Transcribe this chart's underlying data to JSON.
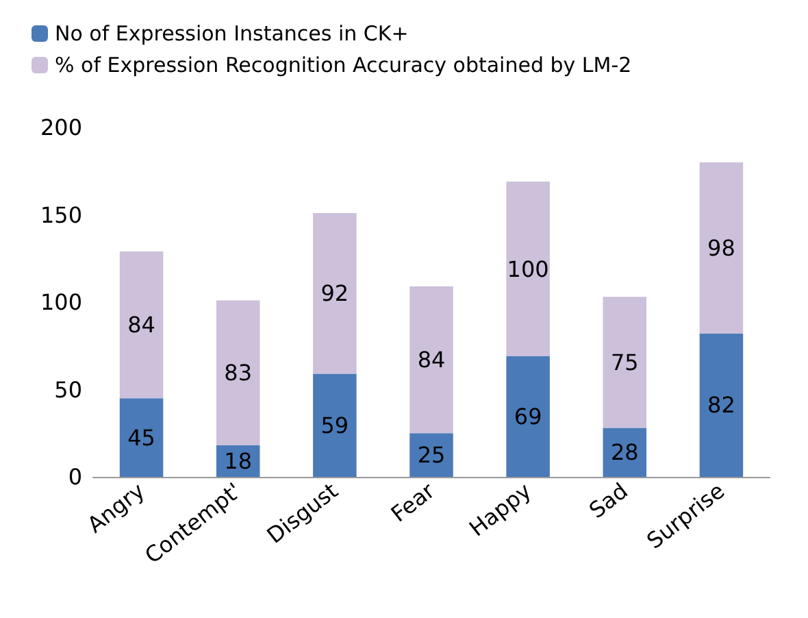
{
  "chart_data": {
    "type": "bar",
    "stacked": true,
    "categories": [
      "Angry",
      "Contempt'",
      "Disgust",
      "Fear",
      "Happy",
      "Sad",
      "Surprise"
    ],
    "series": [
      {
        "name": "No of Expression Instances in CK+",
        "color": "#4a7ab8",
        "values": [
          45,
          18,
          59,
          25,
          69,
          28,
          82
        ]
      },
      {
        "name": "% of Expression Recognition Accuracy obtained by LM-2",
        "color": "#ccc0da",
        "values": [
          84,
          83,
          92,
          84,
          100,
          75,
          98
        ]
      }
    ],
    "ylim": [
      0,
      200
    ],
    "yticks": [
      0,
      50,
      100,
      150,
      200
    ],
    "data_labels": true,
    "legend": "top left",
    "grid": false
  }
}
